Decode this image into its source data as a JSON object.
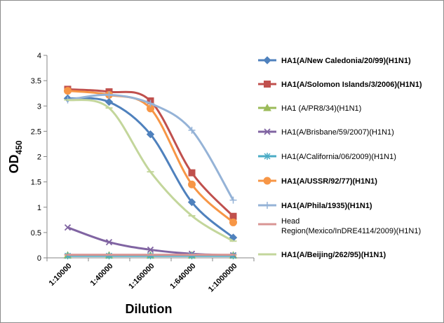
{
  "chart_data": {
    "type": "line",
    "title": "",
    "xlabel": "Dilution",
    "ylabel_main": "OD",
    "ylabel_sub": "450",
    "ylim": [
      0,
      4
    ],
    "yticks": [
      "0",
      "0.5",
      "1",
      "1.5",
      "2",
      "2.5",
      "3",
      "3.5",
      "4"
    ],
    "ytick_values": [
      0,
      0.5,
      1,
      1.5,
      2,
      2.5,
      3,
      3.5,
      4
    ],
    "categories": [
      "1:10000",
      "1:40000",
      "1:160000",
      "1:640000",
      "1:1000000"
    ],
    "grid": false,
    "legend": "right",
    "series": [
      {
        "name": "HA1(A/New Caledonia/20/99)(H1N1)",
        "color": "#4F81BD",
        "marker": "diamond",
        "bold": true,
        "values": [
          3.15,
          3.08,
          2.44,
          1.1,
          0.4
        ]
      },
      {
        "name": "HA1(A/Solomon Islands/3/2006)(H1N1)",
        "color": "#C0504D",
        "marker": "square",
        "bold": true,
        "values": [
          3.33,
          3.28,
          3.1,
          1.68,
          0.82
        ]
      },
      {
        "name": "HA1 (A/PR8/34)(H1N1)",
        "color": "#9BBB59",
        "marker": "triangle",
        "bold": false,
        "values": [
          0.05,
          0.05,
          0.05,
          0.05,
          0.05
        ]
      },
      {
        "name": "HA1(A/Brisbane/59/2007)(H1N1)",
        "color": "#8064A2",
        "marker": "x",
        "bold": false,
        "values": [
          0.6,
          0.31,
          0.16,
          0.08,
          0.05
        ]
      },
      {
        "name": "HA1(A/California/06/2009)(H1N1)",
        "color": "#4BACC6",
        "marker": "star",
        "bold": false,
        "values": [
          0.04,
          0.04,
          0.04,
          0.04,
          0.04
        ]
      },
      {
        "name": "HA1(A/USSR/92/77)(H1N1)",
        "color": "#F79646",
        "marker": "circle",
        "bold": true,
        "values": [
          3.3,
          3.22,
          2.95,
          1.45,
          0.7
        ]
      },
      {
        "name": "HA1(A/Phila/1935)(H1N1)",
        "color": "#95B3D7",
        "marker": "plus",
        "bold": true,
        "values": [
          3.12,
          3.22,
          3.05,
          2.52,
          1.14
        ]
      },
      {
        "name": "Head Region(Mexico/InDRE4114/2009)(H1N1)",
        "color": "#D99694",
        "marker": "dash",
        "bold": false,
        "legend_lines": [
          "Head",
          "Region(Mexico/InDRE4114/2009)(H1N1)"
        ],
        "values": [
          0.06,
          0.06,
          0.06,
          0.06,
          0.06
        ]
      },
      {
        "name": "HA1(A/Beijing/262/95)(H1N1)",
        "color": "#C3D69B",
        "marker": "dash",
        "bold": true,
        "values": [
          3.12,
          2.96,
          1.7,
          0.83,
          0.33
        ]
      }
    ]
  }
}
